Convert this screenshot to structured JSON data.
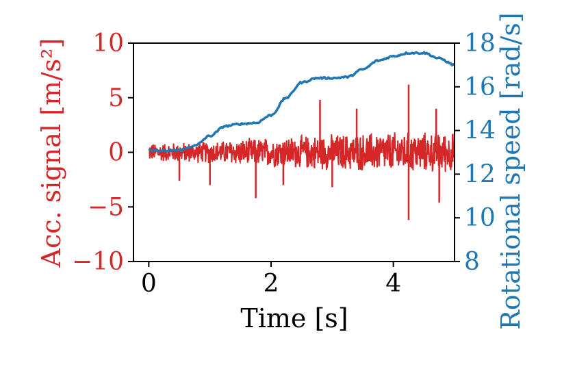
{
  "chart_data": {
    "type": "line",
    "title": "",
    "xlabel": "Time [s]",
    "ylabel_left": "Acc. signal [m/s²]",
    "ylabel_right": "Rotational speed [rad/s]",
    "xlim": [
      -0.25,
      5.0
    ],
    "ylim_left": [
      -10,
      10
    ],
    "ylim_right": [
      8,
      18
    ],
    "x_ticks": [
      0,
      2,
      4
    ],
    "x_tick_labels": [
      "0",
      "2",
      "4"
    ],
    "left_ticks": [
      10,
      5,
      0,
      -5,
      -10
    ],
    "left_tick_labels": [
      "10",
      "5",
      "0",
      "−5",
      "−10"
    ],
    "right_ticks": [
      18,
      16,
      14,
      12,
      10,
      8
    ],
    "right_tick_labels": [
      "18",
      "16",
      "14",
      "12",
      "10",
      "8"
    ],
    "grid": false,
    "colors": {
      "acc": "#d62728",
      "speed": "#1f77b4"
    },
    "series": [
      {
        "axis": "left",
        "kind": "noise-band",
        "x_range": [
          0,
          5
        ],
        "typical_amplitude": 1.2,
        "envelope": [
          {
            "x": 0.0,
            "amp": 0.9
          },
          {
            "x": 1.0,
            "amp": 1.1
          },
          {
            "x": 2.0,
            "amp": 1.5
          },
          {
            "x": 3.0,
            "amp": 1.8
          },
          {
            "x": 4.0,
            "amp": 2.0
          },
          {
            "x": 5.0,
            "amp": 2.0
          }
        ],
        "spikes": [
          {
            "x": 0.5,
            "y": -2.6
          },
          {
            "x": 1.0,
            "y": -3.0
          },
          {
            "x": 1.75,
            "y": -4.2
          },
          {
            "x": 2.8,
            "y": 4.8
          },
          {
            "x": 3.4,
            "y": 4.0
          },
          {
            "x": 4.25,
            "y": 6.2
          },
          {
            "x": 4.25,
            "y": -6.2
          },
          {
            "x": 4.7,
            "y": 4.0
          },
          {
            "x": 4.75,
            "y": -4.6
          },
          {
            "x": 3.0,
            "y": -3.2
          },
          {
            "x": 2.2,
            "y": -3.0
          }
        ]
      },
      {
        "axis": "right",
        "kind": "line",
        "x": [
          0,
          0.25,
          0.5,
          0.75,
          1.0,
          1.25,
          1.5,
          1.75,
          2.0,
          2.25,
          2.5,
          2.75,
          3.0,
          3.25,
          3.5,
          3.75,
          4.0,
          4.25,
          4.5,
          4.75,
          5.0
        ],
        "y": [
          13.1,
          13.05,
          13.1,
          13.3,
          13.75,
          14.2,
          14.3,
          14.35,
          14.7,
          15.5,
          16.2,
          16.4,
          16.4,
          16.45,
          16.8,
          17.2,
          17.4,
          17.55,
          17.55,
          17.3,
          17.0
        ]
      }
    ]
  }
}
